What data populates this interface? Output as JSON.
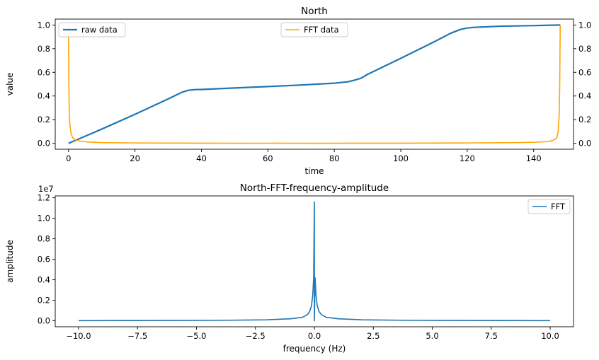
{
  "chart_data": [
    {
      "type": "line",
      "title": "North",
      "xlabel": "time",
      "ylabel": "value",
      "xlim": [
        -4,
        152
      ],
      "ylim": [
        -0.05,
        1.05
      ],
      "y2lim": [
        -0.05,
        1.05
      ],
      "xticks": [
        0,
        20,
        40,
        60,
        80,
        100,
        120,
        140
      ],
      "yticks": [
        0.0,
        0.2,
        0.4,
        0.6,
        0.8,
        1.0
      ],
      "ytick_labels": [
        "0.0",
        "0.2",
        "0.4",
        "0.6",
        "0.8",
        "1.0"
      ],
      "y2ticks": [
        0.0,
        0.2,
        0.4,
        0.6,
        0.8,
        1.0
      ],
      "y2tick_labels": [
        "0.0",
        "0.2",
        "0.4",
        "0.6",
        "0.8",
        "1.0"
      ],
      "series": [
        {
          "name": "raw data",
          "axis": "left",
          "color": "#1f77b4",
          "legend_position": "upper left",
          "x": [
            0,
            10,
            20,
            30,
            34,
            36,
            38,
            40,
            50,
            60,
            70,
            80,
            84,
            86,
            88,
            90,
            100,
            110,
            115,
            118,
            120,
            122,
            130,
            140,
            148
          ],
          "y": [
            0.0,
            0.12,
            0.245,
            0.375,
            0.43,
            0.448,
            0.454,
            0.455,
            0.468,
            0.48,
            0.493,
            0.508,
            0.52,
            0.533,
            0.55,
            0.583,
            0.718,
            0.857,
            0.93,
            0.963,
            0.975,
            0.98,
            0.99,
            0.995,
            1.0
          ]
        },
        {
          "name": "FFT data",
          "axis": "right",
          "color": "#ffa500",
          "legend_position": "upper center",
          "x": [
            0,
            0.08,
            0.2,
            0.4,
            0.7,
            1.2,
            2,
            3.5,
            6,
            10,
            20,
            40,
            74,
            100,
            120,
            135,
            140,
            144,
            145.5,
            146.5,
            147,
            147.4,
            147.7,
            147.85,
            148
          ],
          "y": [
            1.0,
            0.55,
            0.3,
            0.16,
            0.09,
            0.05,
            0.03,
            0.018,
            0.011,
            0.006,
            0.003,
            0.0015,
            0.0005,
            0.0015,
            0.003,
            0.006,
            0.009,
            0.014,
            0.022,
            0.035,
            0.05,
            0.1,
            0.25,
            0.5,
            1.0
          ]
        }
      ]
    },
    {
      "type": "line",
      "title": "North-FFT-frequency-amplitude",
      "xlabel": "frequency (Hz)",
      "ylabel": "amplitude",
      "y_offset_label": "1e7",
      "xlim": [
        -10.99,
        10.99
      ],
      "ylim": [
        -0.058,
        1.218
      ],
      "xticks": [
        -10.0,
        -7.5,
        -5.0,
        -2.5,
        0.0,
        2.5,
        5.0,
        7.5,
        10.0
      ],
      "xtick_labels": [
        "−10.0",
        "−7.5",
        "−5.0",
        "−2.5",
        "0.0",
        "2.5",
        "5.0",
        "7.5",
        "10.0"
      ],
      "yticks": [
        0.0,
        0.2,
        0.4,
        0.6,
        0.8,
        1.0,
        1.2
      ],
      "ytick_labels": [
        "0.0",
        "0.2",
        "0.4",
        "0.6",
        "0.8",
        "1.0",
        "1.2"
      ],
      "series": [
        {
          "name": "FFT",
          "color": "#1f77b4",
          "legend_position": "upper right",
          "x": [
            -10,
            -8,
            -6,
            -4,
            -2,
            -1,
            -0.5,
            -0.3,
            -0.2,
            -0.12,
            -0.07,
            -0.03,
            0,
            0,
            0.03,
            0.07,
            0.12,
            0.2,
            0.3,
            0.5,
            1,
            2,
            4,
            6,
            8,
            10
          ],
          "y": [
            0.002,
            0.0025,
            0.0035,
            0.005,
            0.01,
            0.02,
            0.035,
            0.06,
            0.09,
            0.15,
            0.25,
            0.42,
            1.16,
            0.0,
            0.42,
            0.25,
            0.15,
            0.09,
            0.06,
            0.035,
            0.02,
            0.01,
            0.005,
            0.0035,
            0.0025,
            0.002
          ]
        }
      ]
    }
  ]
}
